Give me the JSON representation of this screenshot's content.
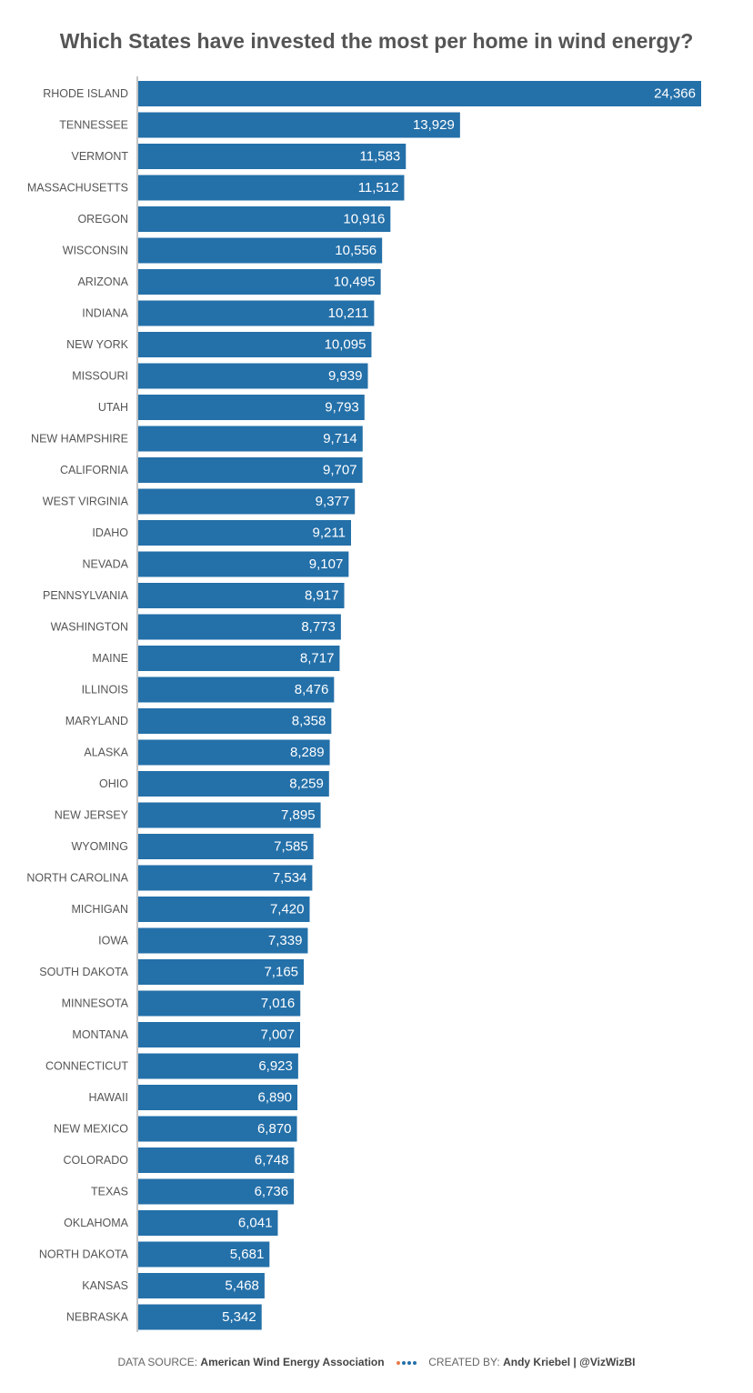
{
  "title": "Which States have invested the most per home in wind energy?",
  "footer": {
    "source_prefix": "DATA SOURCE:",
    "source_name": "American Wind Energy Association",
    "created_prefix": "CREATED BY:",
    "author": "Andy Kriebel | @VizWizBI"
  },
  "colors": {
    "bar": "#2470a9",
    "label": "#555555",
    "dots": [
      "#e87b4a",
      "#2470a9",
      "#2470a9",
      "#2470a9"
    ]
  },
  "chart_data": {
    "type": "bar",
    "orientation": "horizontal",
    "title": "Which States have invested the most per home in wind energy?",
    "xlim": [
      0,
      24366
    ],
    "grid": false,
    "categories": [
      "RHODE ISLAND",
      "TENNESSEE",
      "VERMONT",
      "MASSACHUSETTS",
      "OREGON",
      "WISCONSIN",
      "ARIZONA",
      "INDIANA",
      "NEW YORK",
      "MISSOURI",
      "UTAH",
      "NEW HAMPSHIRE",
      "CALIFORNIA",
      "WEST VIRGINIA",
      "IDAHO",
      "NEVADA",
      "PENNSYLVANIA",
      "WASHINGTON",
      "MAINE",
      "ILLINOIS",
      "MARYLAND",
      "ALASKA",
      "OHIO",
      "NEW JERSEY",
      "WYOMING",
      "NORTH CAROLINA",
      "MICHIGAN",
      "IOWA",
      "SOUTH DAKOTA",
      "MINNESOTA",
      "MONTANA",
      "CONNECTICUT",
      "HAWAII",
      "NEW MEXICO",
      "COLORADO",
      "TEXAS",
      "OKLAHOMA",
      "NORTH DAKOTA",
      "KANSAS",
      "NEBRASKA"
    ],
    "values": [
      24366,
      13929,
      11583,
      11512,
      10916,
      10556,
      10495,
      10211,
      10095,
      9939,
      9793,
      9714,
      9707,
      9377,
      9211,
      9107,
      8917,
      8773,
      8717,
      8476,
      8358,
      8289,
      8259,
      7895,
      7585,
      7534,
      7420,
      7339,
      7165,
      7016,
      7007,
      6923,
      6890,
      6870,
      6748,
      6736,
      6041,
      5681,
      5468,
      5342
    ],
    "data_labels": [
      "24,366",
      "13,929",
      "11,583",
      "11,512",
      "10,916",
      "10,556",
      "10,495",
      "10,211",
      "10,095",
      "9,939",
      "9,793",
      "9,714",
      "9,707",
      "9,377",
      "9,211",
      "9,107",
      "8,917",
      "8,773",
      "8,717",
      "8,476",
      "8,358",
      "8,289",
      "8,259",
      "7,895",
      "7,585",
      "7,534",
      "7,420",
      "7,339",
      "7,165",
      "7,016",
      "7,007",
      "6,923",
      "6,890",
      "6,870",
      "6,748",
      "6,736",
      "6,041",
      "5,681",
      "5,468",
      "5,342"
    ]
  }
}
